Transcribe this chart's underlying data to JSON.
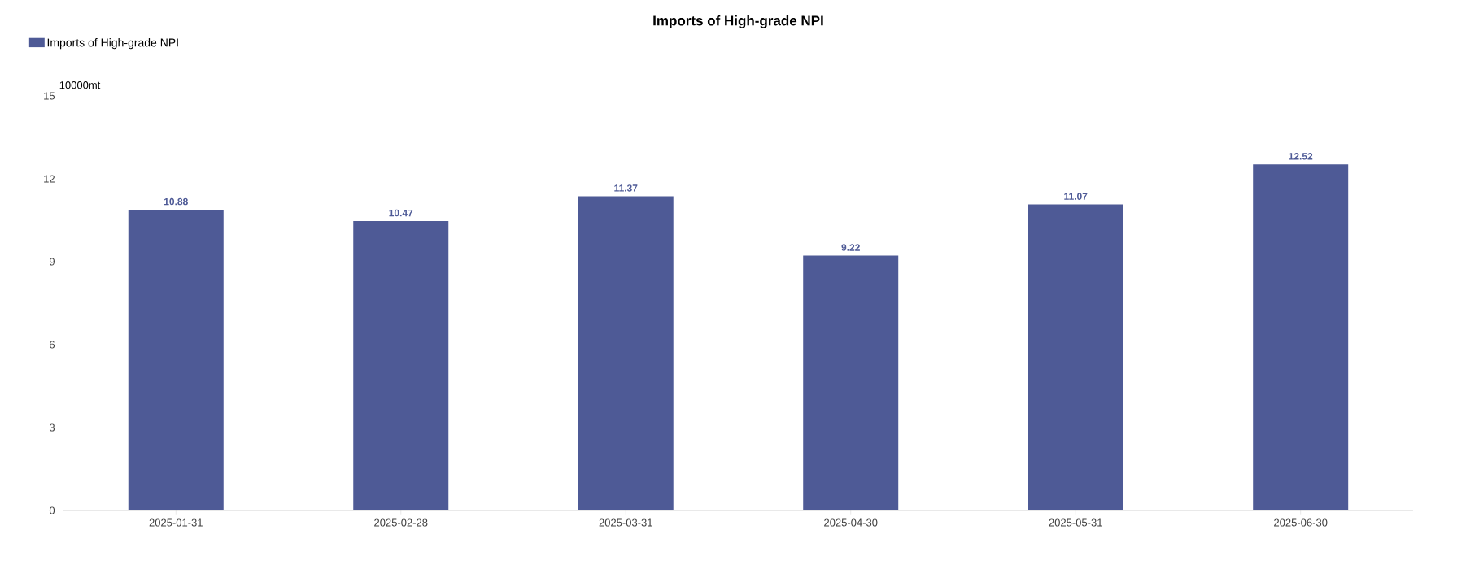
{
  "chart_data": {
    "type": "bar",
    "title": "Imports of High-grade NPI",
    "ylabel": "10000mt",
    "categories": [
      "2025-01-31",
      "2025-02-28",
      "2025-03-31",
      "2025-04-30",
      "2025-05-31",
      "2025-06-30"
    ],
    "series": [
      {
        "name": "Imports of High-grade NPI",
        "color": "#4e5a96",
        "values": [
          10.88,
          10.47,
          11.37,
          9.22,
          11.07,
          12.52
        ]
      }
    ],
    "ylim": [
      0,
      15
    ],
    "yticks": [
      0,
      3,
      6,
      9,
      12,
      15
    ],
    "grid": false,
    "legend": "top left",
    "data_labels": true
  }
}
